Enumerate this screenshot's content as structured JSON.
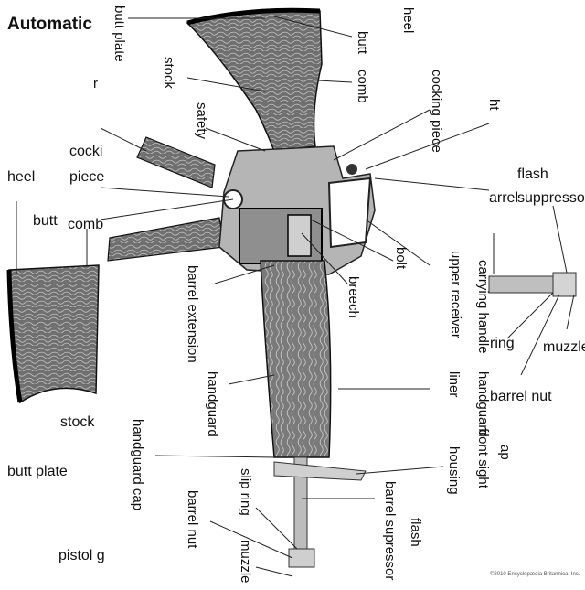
{
  "title": "Automatic rifle",
  "credit": "©2010 Encyclopædia Britannica, Inc.",
  "labels": {
    "butt_plate_top": "butt plate",
    "r_fragment": "r",
    "stock_top": "stock",
    "heel_top": "heel",
    "butt_top": "butt",
    "comb_top": "comb",
    "cocking_piece_top": "cocking piece",
    "safety": "safety",
    "ht": "ht",
    "cocking_left_a": "cocki",
    "cocking_left_b": "piece",
    "heel_left": "heel",
    "butt_left": "butt",
    "comb_left": "comb",
    "flash_suppressor_right": "flash suppressor",
    "arrel": "arrel",
    "bolt": "bolt",
    "upper_receiver": "upper receiver",
    "breech": "breech",
    "barrel_extension": "barrel extension",
    "carrying_handle": "carrying handle",
    "ring": "ring",
    "muzzle_right": "muzzle",
    "barrel_nut_right": "barrel nut",
    "handguard_mid": "handguard",
    "liner": "liner",
    "handguard_right": "handguard",
    "stock_left": "stock",
    "handguard_cap": "handguard cap",
    "front_sight": "front sight",
    "ap": "ap",
    "housing": "housing",
    "butt_plate_left": "butt plate",
    "slip_ring": "slip ring",
    "barrel_nut_bottom": "barrel nut",
    "barrel_supressor": "barrel supressor",
    "flash_bottom": "flash",
    "pistol_g": "pistol g",
    "muzzle_bottom": "muzzle"
  }
}
